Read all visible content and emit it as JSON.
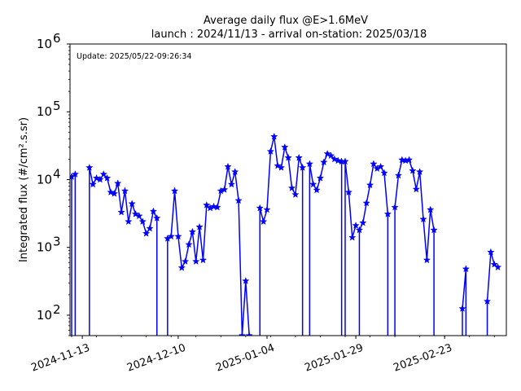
{
  "chart_data": {
    "type": "line",
    "title_line1": "Average daily flux @E>1.6MeV",
    "title_line2": "launch : 2024/11/13 - arrival on-station: 2025/03/18",
    "annotation": "Update: 2025/05/22-09:26:34",
    "ylabel": "Integrated flux (#/cm².s.sr)",
    "xlabel": "",
    "yscale": "log",
    "ylim": [
      50,
      1000000
    ],
    "xlim": [
      "2024-11-10",
      "2025-03-11"
    ],
    "grid": false,
    "line_color": "#0000ff",
    "marker": "star",
    "x_ticks": [
      "2024-11-13",
      "2024-12-10",
      "2025-01-04",
      "2025-01-29",
      "2025-02-23"
    ],
    "y_ticks": [
      {
        "value": 100,
        "base": "10",
        "exp": "2"
      },
      {
        "value": 1000,
        "base": "10",
        "exp": "3"
      },
      {
        "value": 10000,
        "base": "10",
        "exp": "4"
      },
      {
        "value": 100000,
        "base": "10",
        "exp": "5"
      },
      {
        "value": 1000000,
        "base": "10",
        "exp": "6"
      }
    ],
    "segments": [
      {
        "dates": [
          "2024-11-10",
          "2024-11-11"
        ],
        "values": [
          11000,
          12000
        ],
        "drop_start": true,
        "drop_end": true
      },
      {
        "dates": [
          "2024-11-15",
          "2024-11-16",
          "2024-11-17",
          "2024-11-18",
          "2024-11-19",
          "2024-11-20",
          "2024-11-21",
          "2024-11-22",
          "2024-11-23",
          "2024-11-24",
          "2024-11-25",
          "2024-11-26",
          "2024-11-27",
          "2024-11-28",
          "2024-11-29",
          "2024-11-30",
          "2024-12-01",
          "2024-12-02",
          "2024-12-03",
          "2024-12-04"
        ],
        "values": [
          15000,
          8500,
          10500,
          10000,
          12000,
          10500,
          6500,
          6200,
          8800,
          3300,
          6800,
          2400,
          4400,
          3100,
          2900,
          2400,
          1600,
          1900,
          3400,
          2700
        ],
        "drop_start": true,
        "drop_end": true
      },
      {
        "dates": [
          "2024-12-07",
          "2024-12-08",
          "2024-12-09",
          "2024-12-10",
          "2024-12-11",
          "2024-12-12",
          "2024-12-13",
          "2024-12-14",
          "2024-12-15",
          "2024-12-16",
          "2024-12-17",
          "2024-12-18",
          "2024-12-19",
          "2024-12-20",
          "2024-12-21",
          "2024-12-22",
          "2024-12-23",
          "2024-12-24",
          "2024-12-25",
          "2024-12-26",
          "2024-12-27",
          "2024-12-28",
          "2024-12-29",
          "2024-12-30"
        ],
        "values": [
          1350,
          1450,
          6800,
          1450,
          500,
          620,
          1100,
          1700,
          620,
          2000,
          650,
          4200,
          3800,
          4000,
          3900,
          6800,
          7100,
          15500,
          8500,
          13000,
          4900,
          50,
          320,
          50
        ],
        "drop_start": true,
        "drop_end": false
      },
      {
        "dates": [
          "2025-01-02",
          "2025-01-03",
          "2025-01-04",
          "2025-01-05",
          "2025-01-06",
          "2025-01-07",
          "2025-01-08",
          "2025-01-09",
          "2025-01-10",
          "2025-01-11",
          "2025-01-12",
          "2025-01-13",
          "2025-01-14"
        ],
        "values": [
          3800,
          2400,
          3600,
          26000,
          43000,
          16000,
          15000,
          30000,
          21000,
          7500,
          6000,
          21000,
          15000
        ],
        "drop_start": true,
        "drop_end": true
      },
      {
        "dates": [
          "2025-01-16",
          "2025-01-17",
          "2025-01-18",
          "2025-01-19",
          "2025-01-20",
          "2025-01-21",
          "2025-01-22",
          "2025-01-23",
          "2025-01-24",
          "2025-01-25"
        ],
        "values": [
          17000,
          8500,
          7000,
          10500,
          18000,
          24000,
          22500,
          20000,
          19000,
          18500
        ],
        "drop_start": true,
        "drop_end": true
      },
      {
        "dates": [
          "2025-01-26",
          "2025-01-27",
          "2025-01-28",
          "2025-01-29"
        ],
        "values": [
          18500,
          6500,
          1400,
          2100
        ],
        "drop_start": true,
        "drop_end": false
      },
      {
        "dates": [
          "2025-01-30",
          "2025-01-31",
          "2025-02-01",
          "2025-02-02",
          "2025-02-03",
          "2025-02-04",
          "2025-02-05",
          "2025-02-06",
          "2025-02-07"
        ],
        "values": [
          1800,
          2300,
          4500,
          8300,
          17000,
          14500,
          15500,
          12500,
          3100
        ],
        "drop_start": true,
        "drop_end": true
      },
      {
        "dates": [
          "2025-02-09",
          "2025-02-10",
          "2025-02-11",
          "2025-02-12",
          "2025-02-13",
          "2025-02-14",
          "2025-02-15",
          "2025-02-16",
          "2025-02-17",
          "2025-02-18",
          "2025-02-19",
          "2025-02-20"
        ],
        "values": [
          3900,
          11500,
          19500,
          19000,
          19500,
          13500,
          7200,
          13000,
          2600,
          650,
          3600,
          1800
        ],
        "drop_start": true,
        "drop_end": true
      },
      {
        "dates": [
          "2025-02-28",
          "2025-03-01"
        ],
        "values": [
          125,
          480
        ],
        "drop_start": true,
        "drop_end": true
      },
      {
        "dates": [
          "2025-03-07",
          "2025-03-08",
          "2025-03-09",
          "2025-03-10"
        ],
        "values": [
          160,
          850,
          560,
          510
        ],
        "drop_start": true,
        "drop_end": false
      }
    ]
  }
}
